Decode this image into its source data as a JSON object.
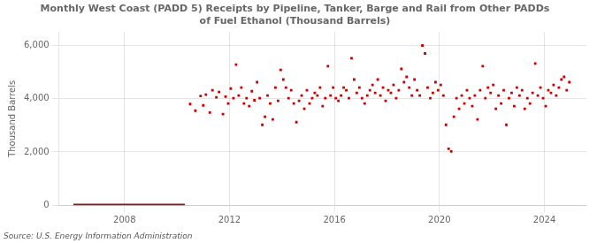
{
  "chart_data": {
    "type": "scatter",
    "title": "Monthly West Coast (PADD 5) Receipts by Pipeline, Tanker, Barge and Rail from Other PADDs\nof Fuel Ethanol (Thousand Barrels)",
    "ylabel": "Thousand Barrels",
    "source": "Source: U.S. Energy Information Administration",
    "xlim": [
      2005.5,
      2025.6
    ],
    "xticks": [
      2008,
      2012,
      2016,
      2020,
      2024
    ],
    "ylim": [
      0,
      6500
    ],
    "yticks": [
      0,
      {
        "value": 2000,
        "label": "2,000"
      },
      {
        "value": 4000,
        "label": "4,000"
      },
      {
        "value": 6000,
        "label": "6,000"
      }
    ],
    "grid": true,
    "series": [
      {
        "type": "line",
        "color": "#8b1a1a",
        "line_style": "solid",
        "x": [
          2006.05,
          2010.3
        ],
        "values": [
          0,
          0
        ]
      },
      {
        "type": "scatter",
        "color": "#cc0000",
        "marker": "square",
        "x": [
          2010.5,
          2010.7,
          2010.9,
          2011.0,
          2011.1,
          2011.25,
          2011.35,
          2011.5,
          2011.6,
          2011.75,
          2011.85,
          2011.95,
          2012.05,
          2012.15,
          2012.25,
          2012.35,
          2012.45,
          2012.55,
          2012.65,
          2012.75,
          2012.85,
          2012.95,
          2013.05,
          2013.15,
          2013.25,
          2013.35,
          2013.45,
          2013.55,
          2013.65,
          2013.75,
          2013.85,
          2013.95,
          2014.05,
          2014.15,
          2014.25,
          2014.35,
          2014.45,
          2014.55,
          2014.65,
          2014.75,
          2014.85,
          2014.95,
          2015.05,
          2015.15,
          2015.25,
          2015.35,
          2015.45,
          2015.55,
          2015.65,
          2015.75,
          2015.85,
          2015.95,
          2016.05,
          2016.15,
          2016.25,
          2016.35,
          2016.45,
          2016.55,
          2016.65,
          2016.75,
          2016.85,
          2016.95,
          2017.05,
          2017.15,
          2017.25,
          2017.35,
          2017.45,
          2017.55,
          2017.65,
          2017.75,
          2017.85,
          2017.95,
          2018.05,
          2018.15,
          2018.25,
          2018.35,
          2018.45,
          2018.55,
          2018.65,
          2018.75,
          2018.85,
          2018.95,
          2019.05,
          2019.15,
          2019.25,
          2019.35,
          2019.45,
          2019.55,
          2019.65,
          2019.75,
          2019.85,
          2019.95,
          2020.05,
          2020.15,
          2020.25,
          2020.35,
          2020.45,
          2020.55,
          2020.65,
          2020.75,
          2020.85,
          2020.95,
          2021.05,
          2021.15,
          2021.25,
          2021.35,
          2021.45,
          2021.55,
          2021.65,
          2021.75,
          2021.85,
          2021.95,
          2022.05,
          2022.15,
          2022.25,
          2022.35,
          2022.45,
          2022.55,
          2022.65,
          2022.75,
          2022.85,
          2022.95,
          2023.05,
          2023.15,
          2023.25,
          2023.35,
          2023.45,
          2023.55,
          2023.65,
          2023.75,
          2023.85,
          2023.95,
          2024.05,
          2024.15,
          2024.25,
          2024.35,
          2024.45,
          2024.55,
          2024.65,
          2024.75,
          2024.85,
          2024.95
        ],
        "values": [
          3800,
          3550,
          4100,
          3750,
          4150,
          3480,
          4320,
          4050,
          4250,
          3420,
          4080,
          3820,
          4380,
          4020,
          5280,
          4120,
          4420,
          3820,
          4020,
          3720,
          4280,
          3940,
          4620,
          4020,
          3020,
          3320,
          4120,
          3820,
          3220,
          4420,
          3920,
          5080,
          4720,
          4420,
          4020,
          4320,
          3820,
          3120,
          3920,
          4120,
          3620,
          4320,
          3820,
          4020,
          4220,
          4120,
          4420,
          3720,
          4020,
          5220,
          4120,
          4420,
          4020,
          3920,
          4120,
          4420,
          4320,
          4020,
          5520,
          4720,
          4220,
          4420,
          4020,
          3820,
          4120,
          4320,
          4520,
          4220,
          4720,
          4120,
          4420,
          3920,
          4320,
          4220,
          4520,
          4020,
          4320,
          5120,
          4620,
          4820,
          4420,
          4120,
          4720,
          4320,
          4120,
          6000,
          5700,
          4420,
          4020,
          4220,
          4620,
          4320,
          4520,
          4120,
          3020,
          2120,
          2020,
          3320,
          4020,
          3620,
          4120,
          3820,
          4320,
          4020,
          3720,
          4120,
          3220,
          4320,
          5220,
          4020,
          4420,
          4220,
          4520,
          3620,
          4120,
          3820,
          4320,
          3020,
          4020,
          4220,
          3720,
          4420,
          4120,
          4320,
          3620,
          4020,
          3820,
          4220,
          5320,
          4120,
          4420,
          4020,
          3720,
          4320,
          4220,
          4520,
          4120,
          4420,
          4720,
          4820,
          4320,
          4620
        ]
      }
    ]
  }
}
